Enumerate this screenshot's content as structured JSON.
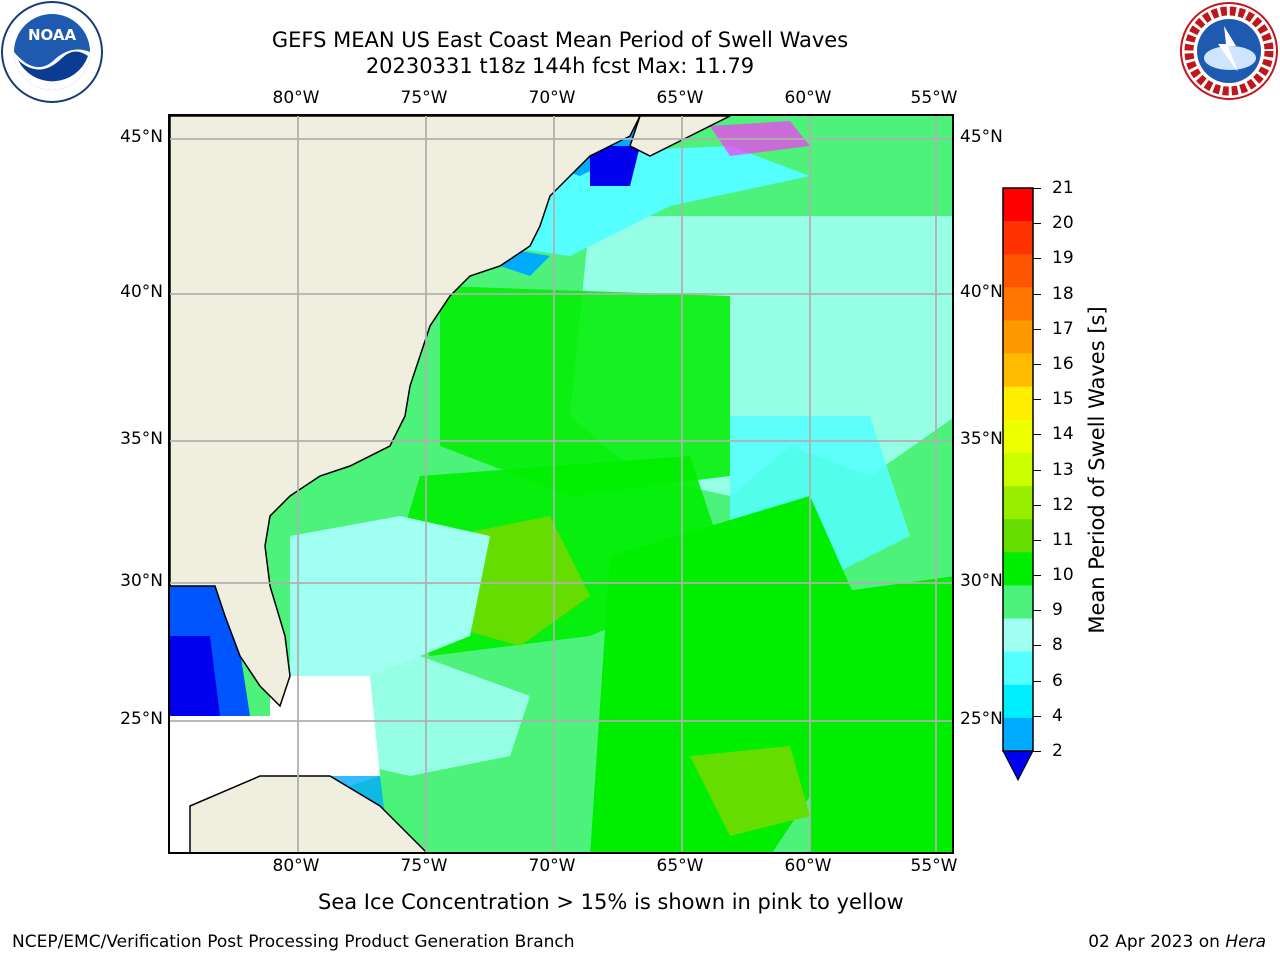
{
  "header": {
    "title_line1": "GEFS MEAN US East Coast Mean Period of Swell Waves",
    "title_line2": "20230331 t18z 144h fcst   Max: 11.79"
  },
  "logos": {
    "left": {
      "icon": "noaa-logo",
      "text": "NOAA"
    },
    "right": {
      "icon": "nws-logo",
      "text": "NATIONAL WEATHER SERVICE"
    }
  },
  "map": {
    "lon_labels": [
      "80°W",
      "75°W",
      "70°W",
      "65°W",
      "60°W",
      "55°W"
    ],
    "lat_labels": [
      "45°N",
      "40°N",
      "35°N",
      "30°N",
      "25°N"
    ],
    "colors": {
      "land": "#efeedf",
      "grid": "#b0b0b0",
      "coast": "#000000"
    }
  },
  "colorbar": {
    "label": "Mean Period of Swell Waves [s]",
    "ticks": [
      "21",
      "20",
      "19",
      "18",
      "17",
      "16",
      "15",
      "14",
      "13",
      "12",
      "11",
      "10",
      "9",
      "8",
      "6",
      "4",
      "2"
    ],
    "colors": [
      "#ff0000",
      "#ff3300",
      "#ff5500",
      "#ff7700",
      "#ff9900",
      "#ffbb00",
      "#ffee00",
      "#eeff00",
      "#ccff00",
      "#99ee00",
      "#66dd00",
      "#00ee00",
      "#4cf27a",
      "#9ffff0",
      "#55ffff",
      "#00eeff",
      "#00aaff",
      "#0055ff"
    ],
    "extend_color": "#0000ee"
  },
  "footer": {
    "note": "Sea Ice Concentration > 15% is shown in pink to yellow",
    "left": "NCEP/EMC/Verification Post Processing Product Generation Branch",
    "right_date": "02 Apr 2023 on ",
    "right_machine": "Hera"
  }
}
